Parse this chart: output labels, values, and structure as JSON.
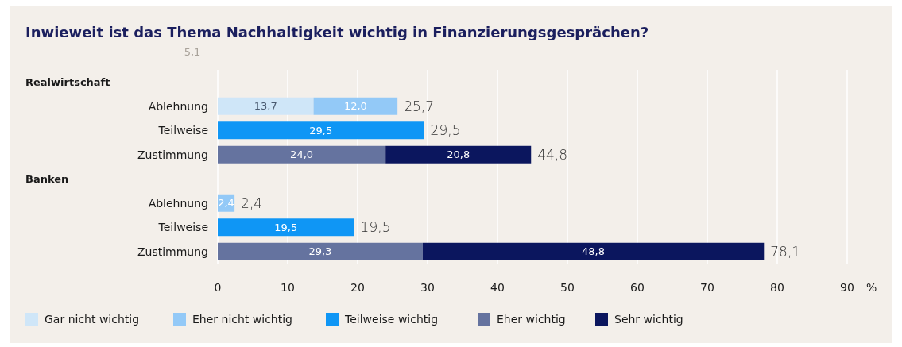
{
  "chart_data": {
    "type": "bar",
    "orientation": "horizontal",
    "stacked": true,
    "title": "Inwieweit ist das Thema Nachhaltigkeit wichtig in Finanzierungsgesprächen?",
    "categories": [
      null,
      "Ablehnung",
      "Teilweise",
      "Zustimmung",
      null,
      "Ablehnung",
      "Teilweise",
      "Zustimmung"
    ],
    "series": [
      {
        "name": "Gar nicht wichtig",
        "color": "#cfe6f8",
        "values": [
          null,
          13.7,
          null,
          null,
          null,
          null,
          null,
          null
        ],
        "value_labels": [
          null,
          "13,7",
          null,
          null,
          null,
          null,
          null,
          null
        ]
      },
      {
        "name": "Eher nicht wichtig",
        "color": "#93c9f7",
        "values": [
          null,
          12.0,
          null,
          null,
          null,
          2.4,
          null,
          null
        ],
        "value_labels": [
          null,
          "12,0",
          null,
          null,
          null,
          "2,4",
          null,
          null
        ]
      },
      {
        "name": "Teilweise wichtig",
        "color": "#0f96f5",
        "values": [
          null,
          null,
          29.5,
          null,
          null,
          null,
          19.5,
          null
        ],
        "value_labels": [
          null,
          null,
          "29,5",
          null,
          null,
          null,
          "19,5",
          null
        ]
      },
      {
        "name": "Eher wichtig",
        "color": "#65739f",
        "values": [
          null,
          null,
          null,
          24.0,
          null,
          null,
          null,
          29.3
        ],
        "value_labels": [
          null,
          null,
          null,
          "24,0",
          null,
          null,
          null,
          "29,3"
        ]
      },
      {
        "name": "Sehr wichtig",
        "color": "#0b165e",
        "values": [
          null,
          null,
          null,
          20.8,
          null,
          null,
          null,
          48.8
        ],
        "value_labels": [
          null,
          null,
          null,
          "20,8",
          null,
          null,
          null,
          "48,8"
        ]
      }
    ],
    "totals": [
      null,
      "25,7",
      "29,5",
      "44,8",
      null,
      "2,4",
      "19,5",
      "78,1"
    ],
    "xlim": [
      0,
      90
    ],
    "xticks": [
      0,
      10,
      20,
      30,
      40,
      50,
      60,
      70,
      80,
      90
    ],
    "xlabel": "%",
    "grid": "x",
    "legend": "bottom",
    "annotations": [
      "Realwirtschaft",
      "Banken",
      "5,1"
    ]
  }
}
